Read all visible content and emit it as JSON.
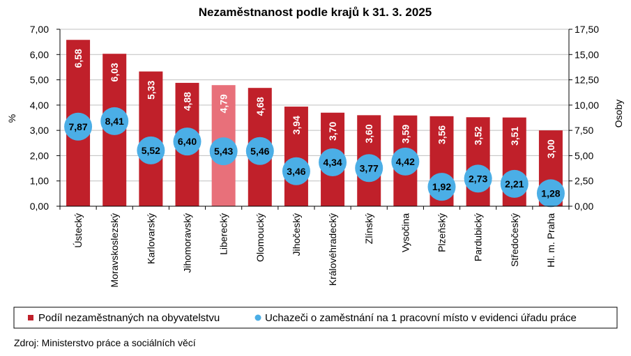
{
  "chart_data": {
    "type": "bar",
    "title": "Nezaměstnanost podle krajů k 31. 3. 2025",
    "ylabel": "%",
    "y2label": "Osoby",
    "ylim": [
      0,
      7
    ],
    "y2lim": [
      0,
      17.5
    ],
    "yticks": [
      "0,00",
      "1,00",
      "2,00",
      "3,00",
      "4,00",
      "5,00",
      "6,00",
      "7,00"
    ],
    "y2ticks": [
      "0,00",
      "2,50",
      "5,00",
      "7,50",
      "10,00",
      "12,50",
      "15,00",
      "17,50"
    ],
    "categories": [
      "Ústecký",
      "Moravskoslezský",
      "Karlovarský",
      "Jihomoravský",
      "Liberecký",
      "Olomoucký",
      "Jihočeský",
      "Královéhradecký",
      "Zlínský",
      "Vysočina",
      "Plzeňský",
      "Pardubický",
      "Středočeský",
      "Hl. m. Praha"
    ],
    "series": [
      {
        "name": "Podíl nezaměstnaných na obyvatelstvu",
        "kind": "bar",
        "axis": "left",
        "color": "#C0202A",
        "highlight_color": "#E8707A",
        "highlight_index": 4,
        "values": [
          6.58,
          6.03,
          5.33,
          4.88,
          4.79,
          4.68,
          3.94,
          3.7,
          3.6,
          3.59,
          3.56,
          3.52,
          3.51,
          3.0
        ],
        "labels": [
          "6,58",
          "6,03",
          "5,33",
          "4,88",
          "4,79",
          "4,68",
          "3,94",
          "3,70",
          "3,60",
          "3,59",
          "3,56",
          "3,52",
          "3,51",
          "3,00"
        ]
      },
      {
        "name": "Uchazeči o zaměstnání na 1 pracovní místo v evidenci úřadu práce",
        "kind": "dot",
        "axis": "right",
        "color": "#4BAEE6",
        "values": [
          7.87,
          8.41,
          5.52,
          6.4,
          5.43,
          5.46,
          3.46,
          4.34,
          3.77,
          4.42,
          1.92,
          2.73,
          2.21,
          1.28
        ],
        "labels": [
          "7,87",
          "8,41",
          "5,52",
          "6,40",
          "5,43",
          "5,46",
          "3,46",
          "4,34",
          "3,77",
          "4,42",
          "1,92",
          "2,73",
          "2,21",
          "1,28"
        ]
      }
    ],
    "grid": true,
    "legend_position": "bottom"
  },
  "source": "Zdroj:  Ministerstvo  práce a sociálních věcí"
}
